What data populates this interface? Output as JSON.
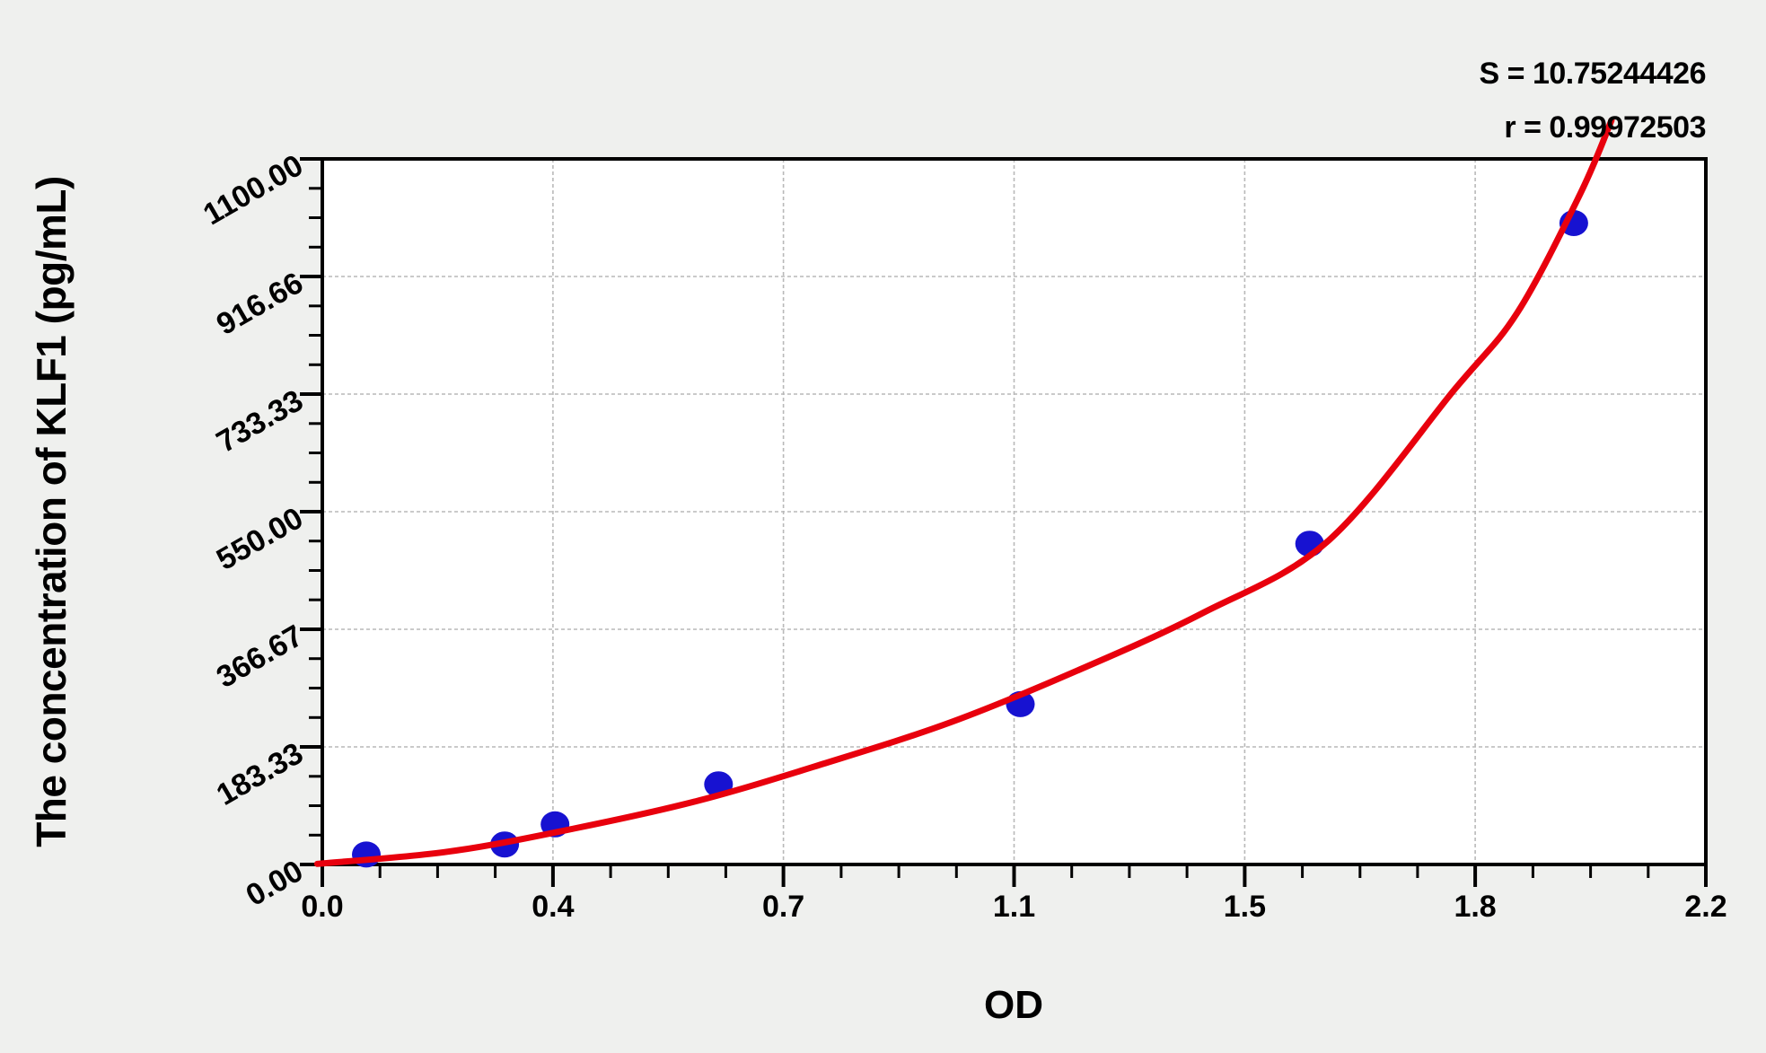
{
  "figure": {
    "kind": "elisa-standard-curve",
    "background": "#eff0ee"
  },
  "stats": {
    "s": "S = 10.75244426",
    "r": "r = 0.99972503"
  },
  "chart_data": {
    "type": "scatter",
    "title": "",
    "xlabel": "OD",
    "ylabel": "The concentration of KLF1 (pg/mL)",
    "xlim": [
      0,
      2.2
    ],
    "ylim": [
      0,
      1100
    ],
    "x_tick_values": [
      0,
      0.3667,
      0.7333,
      1.1,
      1.4667,
      1.8333,
      2.2
    ],
    "x_tick_labels": [
      "0.0",
      "0.4",
      "0.7",
      "1.1",
      "1.5",
      "1.8",
      "2.2"
    ],
    "y_tick_values": [
      0,
      183.33,
      366.67,
      550,
      733.33,
      916.66,
      1100
    ],
    "y_tick_labels": [
      "0.00",
      "183.33",
      "366.67",
      "550.00",
      "733.33",
      "916.66",
      "1100.00"
    ],
    "minor_ticks_between_majors": 3,
    "grid": {
      "show": true,
      "style": "dashed",
      "at": "interior-major-ticks"
    },
    "legend": "none",
    "series": [
      {
        "name": "standard-points",
        "type": "scatter",
        "color": "#1712d1",
        "od": [
          0.07,
          0.29,
          0.37,
          0.63,
          1.11,
          1.57,
          1.99
        ],
        "concentration": [
          15.6,
          31.2,
          62.5,
          125,
          250,
          500,
          1000
        ]
      },
      {
        "name": "fit-curve",
        "type": "line",
        "color": "#e8000d",
        "points": [
          [
            -0.008,
            1
          ],
          [
            0.2,
            20
          ],
          [
            0.4,
            56
          ],
          [
            0.6,
            100
          ],
          [
            0.8,
            158
          ],
          [
            1.0,
            222
          ],
          [
            1.2,
            302
          ],
          [
            1.4,
            392
          ],
          [
            1.6,
            505
          ],
          [
            1.8,
            740
          ],
          [
            1.9,
            860
          ],
          [
            2.0,
            1045
          ],
          [
            2.05,
            1160
          ]
        ]
      }
    ],
    "annotations": [
      "S = 10.75244426",
      "r = 0.99972503"
    ]
  },
  "colors": {
    "background": "#eff0ee",
    "plot_background": "#ffffff",
    "axis": "#000000",
    "grid": "#b9b9b9",
    "curve": "#e8000d",
    "points": "#1712d1",
    "text": "#000000"
  }
}
